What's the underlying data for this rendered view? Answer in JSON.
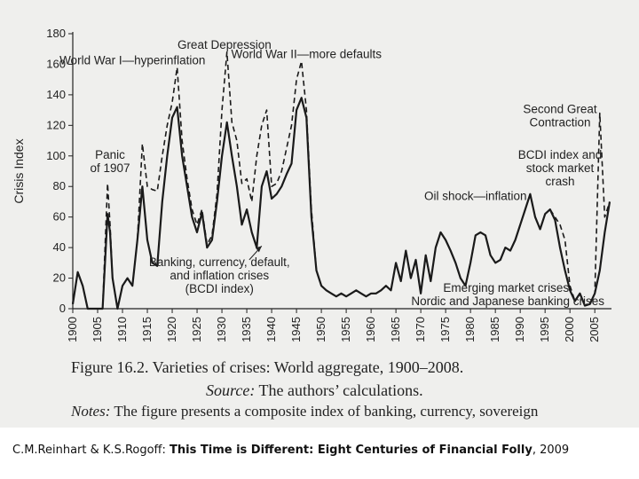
{
  "chart_data": {
    "type": "line",
    "ylabel": "Crisis Index",
    "ylim": [
      0,
      180
    ],
    "xlim": [
      1900,
      2008
    ],
    "yticks": [
      0,
      20,
      40,
      60,
      80,
      100,
      120,
      140,
      160,
      180
    ],
    "xticks": [
      1900,
      1905,
      1910,
      1915,
      1920,
      1925,
      1930,
      1935,
      1940,
      1945,
      1950,
      1955,
      1960,
      1965,
      1970,
      1975,
      1980,
      1985,
      1990,
      1995,
      2000,
      2005
    ],
    "series": [
      {
        "style": "solid",
        "points": [
          [
            1900,
            3
          ],
          [
            1901,
            24
          ],
          [
            1902,
            15
          ],
          [
            1903,
            0
          ],
          [
            1904,
            0
          ],
          [
            1905,
            0
          ],
          [
            1906,
            0
          ],
          [
            1907,
            62
          ],
          [
            1907.5,
            50
          ],
          [
            1908,
            20
          ],
          [
            1909,
            0
          ],
          [
            1910,
            15
          ],
          [
            1911,
            20
          ],
          [
            1912,
            15
          ],
          [
            1913,
            45
          ],
          [
            1914,
            80
          ],
          [
            1915,
            45
          ],
          [
            1916,
            30
          ],
          [
            1917,
            28
          ],
          [
            1918,
            70
          ],
          [
            1919,
            100
          ],
          [
            1920,
            125
          ],
          [
            1921,
            132
          ],
          [
            1922,
            100
          ],
          [
            1923,
            80
          ],
          [
            1924,
            60
          ],
          [
            1925,
            50
          ],
          [
            1926,
            63
          ],
          [
            1927,
            40
          ],
          [
            1928,
            45
          ],
          [
            1929,
            70
          ],
          [
            1930,
            100
          ],
          [
            1931,
            122
          ],
          [
            1932,
            100
          ],
          [
            1933,
            80
          ],
          [
            1934,
            55
          ],
          [
            1935,
            65
          ],
          [
            1936,
            50
          ],
          [
            1937,
            40
          ],
          [
            1938,
            80
          ],
          [
            1939,
            90
          ],
          [
            1940,
            72
          ],
          [
            1941,
            75
          ],
          [
            1942,
            80
          ],
          [
            1943,
            88
          ],
          [
            1944,
            95
          ],
          [
            1945,
            130
          ],
          [
            1946,
            138
          ],
          [
            1947,
            125
          ],
          [
            1948,
            60
          ],
          [
            1949,
            25
          ],
          [
            1950,
            15
          ],
          [
            1951,
            12
          ],
          [
            1952,
            10
          ],
          [
            1953,
            8
          ],
          [
            1954,
            10
          ],
          [
            1955,
            8
          ],
          [
            1956,
            10
          ],
          [
            1957,
            12
          ],
          [
            1958,
            10
          ],
          [
            1959,
            8
          ],
          [
            1960,
            10
          ],
          [
            1961,
            10
          ],
          [
            1962,
            12
          ],
          [
            1963,
            15
          ],
          [
            1964,
            12
          ],
          [
            1965,
            30
          ],
          [
            1966,
            18
          ],
          [
            1967,
            38
          ],
          [
            1968,
            20
          ],
          [
            1969,
            32
          ],
          [
            1970,
            10
          ],
          [
            1971,
            35
          ],
          [
            1972,
            18
          ],
          [
            1973,
            40
          ],
          [
            1974,
            50
          ],
          [
            1975,
            45
          ],
          [
            1976,
            38
          ],
          [
            1977,
            30
          ],
          [
            1978,
            20
          ],
          [
            1979,
            15
          ],
          [
            1980,
            30
          ],
          [
            1981,
            48
          ],
          [
            1982,
            50
          ],
          [
            1983,
            48
          ],
          [
            1984,
            35
          ],
          [
            1985,
            30
          ],
          [
            1986,
            32
          ],
          [
            1987,
            40
          ],
          [
            1988,
            38
          ],
          [
            1989,
            45
          ],
          [
            1990,
            55
          ],
          [
            1991,
            65
          ],
          [
            1992,
            75
          ],
          [
            1993,
            60
          ],
          [
            1994,
            52
          ],
          [
            1995,
            62
          ],
          [
            1996,
            65
          ],
          [
            1997,
            58
          ],
          [
            1998,
            40
          ],
          [
            1999,
            25
          ],
          [
            2000,
            12
          ],
          [
            2001,
            5
          ],
          [
            2002,
            10
          ],
          [
            2003,
            2
          ],
          [
            2004,
            3
          ],
          [
            2005,
            10
          ],
          [
            2006,
            25
          ],
          [
            2007,
            50
          ],
          [
            2008,
            70
          ]
        ]
      },
      {
        "style": "dashed",
        "points": [
          [
            1900,
            3
          ],
          [
            1901,
            24
          ],
          [
            1902,
            15
          ],
          [
            1903,
            0
          ],
          [
            1904,
            0
          ],
          [
            1905,
            0
          ],
          [
            1906,
            0
          ],
          [
            1907,
            82
          ],
          [
            1907.5,
            55
          ],
          [
            1908,
            20
          ],
          [
            1909,
            0
          ],
          [
            1910,
            15
          ],
          [
            1911,
            20
          ],
          [
            1912,
            15
          ],
          [
            1913,
            45
          ],
          [
            1914,
            108
          ],
          [
            1915,
            80
          ],
          [
            1916,
            78
          ],
          [
            1917,
            77
          ],
          [
            1918,
            100
          ],
          [
            1919,
            120
          ],
          [
            1920,
            135
          ],
          [
            1921,
            158
          ],
          [
            1922,
            110
          ],
          [
            1923,
            85
          ],
          [
            1924,
            65
          ],
          [
            1925,
            55
          ],
          [
            1926,
            65
          ],
          [
            1927,
            42
          ],
          [
            1928,
            48
          ],
          [
            1929,
            75
          ],
          [
            1930,
            130
          ],
          [
            1931,
            168
          ],
          [
            1932,
            122
          ],
          [
            1933,
            110
          ],
          [
            1934,
            82
          ],
          [
            1935,
            85
          ],
          [
            1936,
            70
          ],
          [
            1937,
            100
          ],
          [
            1938,
            120
          ],
          [
            1939,
            130
          ],
          [
            1940,
            80
          ],
          [
            1941,
            82
          ],
          [
            1942,
            90
          ],
          [
            1943,
            105
          ],
          [
            1944,
            120
          ],
          [
            1945,
            150
          ],
          [
            1946,
            162
          ],
          [
            1947,
            130
          ],
          [
            1948,
            65
          ],
          [
            1949,
            25
          ],
          [
            1950,
            15
          ],
          [
            1951,
            12
          ],
          [
            1952,
            10
          ],
          [
            1953,
            8
          ],
          [
            1954,
            10
          ],
          [
            1955,
            8
          ],
          [
            1956,
            10
          ],
          [
            1957,
            12
          ],
          [
            1958,
            10
          ],
          [
            1959,
            8
          ],
          [
            1960,
            10
          ],
          [
            1961,
            10
          ],
          [
            1962,
            12
          ],
          [
            1963,
            15
          ],
          [
            1964,
            12
          ],
          [
            1965,
            30
          ],
          [
            1966,
            18
          ],
          [
            1967,
            38
          ],
          [
            1968,
            20
          ],
          [
            1969,
            32
          ],
          [
            1970,
            10
          ],
          [
            1971,
            35
          ],
          [
            1972,
            18
          ],
          [
            1973,
            40
          ],
          [
            1974,
            50
          ],
          [
            1975,
            45
          ],
          [
            1976,
            38
          ],
          [
            1977,
            30
          ],
          [
            1978,
            20
          ],
          [
            1979,
            15
          ],
          [
            1980,
            30
          ],
          [
            1981,
            48
          ],
          [
            1982,
            50
          ],
          [
            1983,
            48
          ],
          [
            1984,
            35
          ],
          [
            1985,
            30
          ],
          [
            1986,
            32
          ],
          [
            1987,
            40
          ],
          [
            1988,
            38
          ],
          [
            1989,
            45
          ],
          [
            1990,
            55
          ],
          [
            1991,
            65
          ],
          [
            1992,
            75
          ],
          [
            1993,
            60
          ],
          [
            1994,
            52
          ],
          [
            1995,
            62
          ],
          [
            1996,
            65
          ],
          [
            1997,
            60
          ],
          [
            1998,
            55
          ],
          [
            1999,
            45
          ],
          [
            2000,
            15
          ],
          [
            2001,
            5
          ],
          [
            2002,
            10
          ],
          [
            2003,
            2
          ],
          [
            2004,
            3
          ],
          [
            2005,
            10
          ],
          [
            2006,
            128
          ],
          [
            2007,
            60
          ],
          [
            2008,
            70
          ]
        ]
      }
    ],
    "annotations": [
      {
        "lines": [
          "Great Depression"
        ],
        "x": 1930.5,
        "y": 170
      },
      {
        "lines": [
          "World War I—hyperinflation"
        ],
        "x": 1912,
        "y": 160
      },
      {
        "lines": [
          "World War II—more defaults"
        ],
        "x": 1947,
        "y": 164
      },
      {
        "lines": [
          "Panic",
          "of 1907"
        ],
        "x": 1907.5,
        "y": 98
      },
      {
        "lines": [
          "Second Great",
          "Contraction"
        ],
        "x": 1998,
        "y": 128
      },
      {
        "lines": [
          "BCDI index and",
          "stock market",
          "crash"
        ],
        "x": 1998,
        "y": 98
      },
      {
        "lines": [
          "Oil shock—inflation"
        ],
        "x": 1981,
        "y": 71
      },
      {
        "lines": [
          "Banking, currency, default,",
          "and inflation crises",
          "(BCDI index)"
        ],
        "x": 1929.5,
        "y": 28
      },
      {
        "lines": [
          "Emerging market crises,",
          "Nordic and Japanese banking crises"
        ],
        "x": 1987.5,
        "y": 11
      }
    ]
  },
  "caption": {
    "figure": "Figure 16.2.  Varieties of crises: World aggregate, 1900–2008.",
    "source_label": "Source:",
    "source_text": " The authors’ calculations.",
    "notes_label": "Notes:",
    "notes_text": " The figure presents a composite index of banking, currency, sovereign"
  },
  "citation": {
    "authors": "C.M.Reinhart & K.S.Rogoff: ",
    "title": "This Time is Different: Eight Centuries of Financial Folly",
    "year": ", 2009"
  }
}
